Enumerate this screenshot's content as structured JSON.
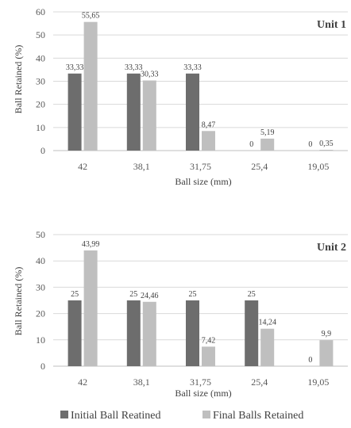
{
  "chart_data": [
    {
      "type": "bar",
      "annotation": "Unit 1",
      "xlabel": "Ball size (mm)",
      "ylabel": "Ball Retained (%)",
      "categories": [
        "42",
        "38,1",
        "31,75",
        "25,4",
        "19,05"
      ],
      "ylim": [
        0,
        60
      ],
      "yticks": [
        "0",
        "10",
        "20",
        "30",
        "40",
        "50",
        "60"
      ],
      "grid": true,
      "series": [
        {
          "name": "Initial Ball Reatined",
          "color": "#6d6d6d",
          "values": [
            33.33,
            33.33,
            33.33,
            0,
            0
          ],
          "labels": [
            "33,33",
            "33,33",
            "33,33",
            "0",
            "0"
          ]
        },
        {
          "name": "Final Balls Retained",
          "color": "#bfbfbf",
          "values": [
            55.65,
            30.33,
            8.47,
            5.19,
            0.35
          ],
          "labels": [
            "55,65",
            "30,33",
            "8,47",
            "5,19",
            "0,35"
          ]
        }
      ]
    },
    {
      "type": "bar",
      "annotation": "Unit 2",
      "xlabel": "Ball size (mm)",
      "ylabel": "Ball Retained (%)",
      "categories": [
        "42",
        "38,1",
        "31,75",
        "25,4",
        "19,05"
      ],
      "ylim": [
        0,
        50
      ],
      "yticks": [
        "0",
        "10",
        "20",
        "30",
        "40",
        "50"
      ],
      "grid": true,
      "series": [
        {
          "name": "Initial Ball Reatined",
          "color": "#6d6d6d",
          "values": [
            25,
            25,
            25,
            25,
            0
          ],
          "labels": [
            "25",
            "25",
            "25",
            "25",
            "0"
          ]
        },
        {
          "name": "Final Balls Retained",
          "color": "#bfbfbf",
          "values": [
            43.99,
            24.46,
            7.42,
            14.24,
            9.9
          ],
          "labels": [
            "43,99",
            "24,46",
            "7,42",
            "14,24",
            "9,9"
          ]
        }
      ]
    }
  ],
  "legend": {
    "position": "bottom",
    "items": [
      {
        "label": "Initial Ball Reatined",
        "color": "#6d6d6d"
      },
      {
        "label": "Final Balls Retained",
        "color": "#bfbfbf"
      }
    ]
  }
}
